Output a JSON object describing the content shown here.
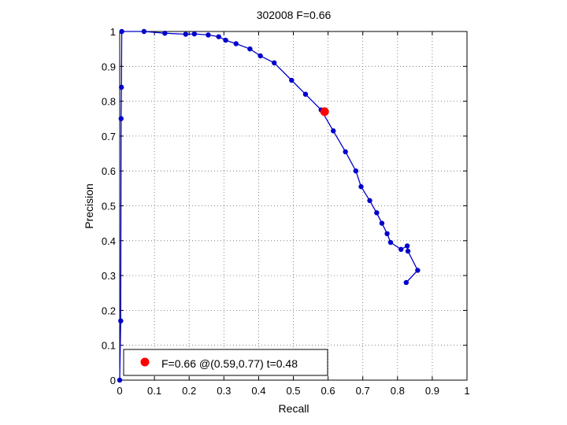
{
  "chart_data": {
    "type": "line",
    "title": "302008 F=0.66",
    "xlabel": "Recall",
    "ylabel": "Precision",
    "xlim": [
      0,
      1
    ],
    "ylim": [
      0,
      1
    ],
    "grid": true,
    "xticks": [
      "0",
      "0.1",
      "0.2",
      "0.3",
      "0.4",
      "0.5",
      "0.6",
      "0.7",
      "0.8",
      "0.9",
      "1"
    ],
    "yticks": [
      "0",
      "0.1",
      "0.2",
      "0.3",
      "0.4",
      "0.5",
      "0.6",
      "0.7",
      "0.8",
      "0.9",
      "1"
    ],
    "series": [
      {
        "color": "#0000cc",
        "marker": "dot",
        "points": [
          [
            0.0,
            0.0
          ],
          [
            0.003,
            0.17
          ],
          [
            0.004,
            0.75
          ],
          [
            0.005,
            0.84
          ],
          [
            0.006,
            1.0
          ],
          [
            0.07,
            1.0
          ],
          [
            0.13,
            0.995
          ],
          [
            0.19,
            0.992
          ],
          [
            0.215,
            0.993
          ],
          [
            0.255,
            0.99
          ],
          [
            0.285,
            0.985
          ],
          [
            0.305,
            0.975
          ],
          [
            0.335,
            0.965
          ],
          [
            0.375,
            0.95
          ],
          [
            0.405,
            0.93
          ],
          [
            0.445,
            0.91
          ],
          [
            0.495,
            0.86
          ],
          [
            0.535,
            0.82
          ],
          [
            0.58,
            0.775
          ],
          [
            0.615,
            0.715
          ],
          [
            0.65,
            0.655
          ],
          [
            0.68,
            0.6
          ],
          [
            0.695,
            0.555
          ],
          [
            0.72,
            0.515
          ],
          [
            0.74,
            0.48
          ],
          [
            0.755,
            0.45
          ],
          [
            0.77,
            0.42
          ],
          [
            0.78,
            0.395
          ],
          [
            0.81,
            0.375
          ],
          [
            0.828,
            0.385
          ],
          [
            0.83,
            0.37
          ],
          [
            0.858,
            0.315
          ],
          [
            0.825,
            0.28
          ]
        ]
      }
    ],
    "highlight": {
      "x": 0.59,
      "y": 0.77,
      "color": "#ff0000"
    },
    "legend": {
      "position": "bottom-left",
      "text": "F=0.66 @(0.59,0.77) t=0.48",
      "marker_color": "#ff0000"
    }
  }
}
